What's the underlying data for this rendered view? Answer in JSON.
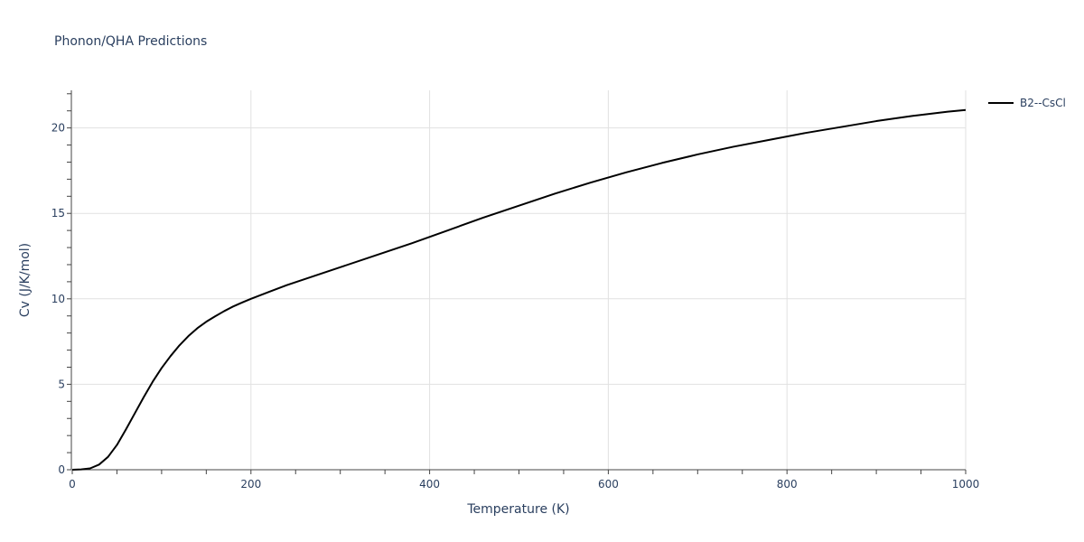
{
  "chart_data": {
    "type": "line",
    "title": "Phonon/QHA Predictions",
    "xlabel": "Temperature (K)",
    "ylabel": "Cv (J/K/mol)",
    "xlim": [
      0,
      1000
    ],
    "ylim": [
      0,
      22.2
    ],
    "x_ticks": [
      0,
      200,
      400,
      600,
      800,
      1000
    ],
    "y_ticks": [
      0,
      5,
      10,
      15,
      20
    ],
    "x_tick_labels": [
      "0",
      "200",
      "400",
      "600",
      "800",
      "1000"
    ],
    "y_tick_labels": [
      "0",
      "5",
      "10",
      "15",
      "20"
    ],
    "grid": true,
    "legend_position": "top-right",
    "series": [
      {
        "name": "B2--CsCl",
        "color": "#000000",
        "x": [
          0,
          10,
          20,
          30,
          40,
          50,
          60,
          70,
          80,
          90,
          100,
          110,
          120,
          130,
          140,
          150,
          160,
          170,
          180,
          190,
          200,
          220,
          240,
          260,
          280,
          300,
          340,
          380,
          420,
          460,
          500,
          540,
          580,
          620,
          660,
          700,
          740,
          780,
          820,
          860,
          900,
          940,
          980,
          1000
        ],
        "y": [
          0,
          0.02,
          0.08,
          0.3,
          0.75,
          1.45,
          2.35,
          3.3,
          4.25,
          5.15,
          5.95,
          6.65,
          7.28,
          7.82,
          8.28,
          8.66,
          8.98,
          9.28,
          9.55,
          9.78,
          10.0,
          10.4,
          10.8,
          11.15,
          11.5,
          11.85,
          12.55,
          13.25,
          14.0,
          14.75,
          15.45,
          16.15,
          16.8,
          17.4,
          17.95,
          18.45,
          18.9,
          19.3,
          19.7,
          20.05,
          20.4,
          20.7,
          20.95,
          21.05
        ]
      }
    ]
  }
}
